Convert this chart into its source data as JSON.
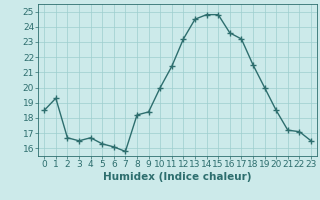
{
  "x": [
    0,
    1,
    2,
    3,
    4,
    5,
    6,
    7,
    8,
    9,
    10,
    11,
    12,
    13,
    14,
    15,
    16,
    17,
    18,
    19,
    20,
    21,
    22,
    23
  ],
  "y": [
    18.5,
    19.3,
    16.7,
    16.5,
    16.7,
    16.3,
    16.1,
    15.8,
    18.2,
    18.4,
    20.0,
    21.4,
    23.2,
    24.5,
    24.8,
    24.8,
    23.6,
    23.2,
    21.5,
    20.0,
    18.5,
    17.2,
    17.1,
    16.5
  ],
  "xlabel": "Humidex (Indice chaleur)",
  "ylim": [
    15.5,
    25.5
  ],
  "xlim": [
    -0.5,
    23.5
  ],
  "yticks": [
    16,
    17,
    18,
    19,
    20,
    21,
    22,
    23,
    24,
    25
  ],
  "xticks": [
    0,
    1,
    2,
    3,
    4,
    5,
    6,
    7,
    8,
    9,
    10,
    11,
    12,
    13,
    14,
    15,
    16,
    17,
    18,
    19,
    20,
    21,
    22,
    23
  ],
  "xtick_labels": [
    "0",
    "1",
    "2",
    "3",
    "4",
    "5",
    "6",
    "7",
    "8",
    "9",
    "10",
    "11",
    "12",
    "13",
    "14",
    "15",
    "16",
    "17",
    "18",
    "19",
    "20",
    "21",
    "22",
    "23"
  ],
  "line_color": "#2d6e6e",
  "marker_color": "#2d6e6e",
  "bg_color": "#cceaea",
  "grid_color": "#9ecece",
  "text_color": "#2d6e6e",
  "xlabel_fontsize": 7.5,
  "tick_fontsize": 6.5,
  "marker_size": 2.5,
  "line_width": 1.0
}
